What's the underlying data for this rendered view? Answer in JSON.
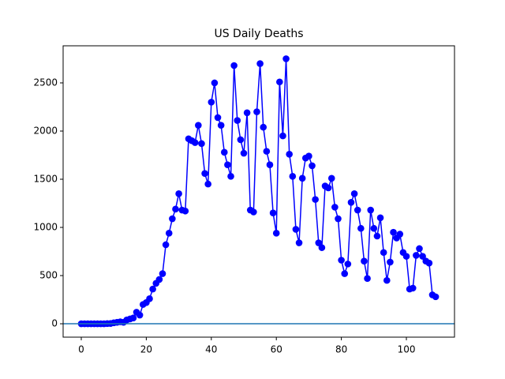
{
  "chart_data": {
    "type": "line",
    "title": "US Daily Deaths",
    "x": [
      0,
      1,
      2,
      3,
      4,
      5,
      6,
      7,
      8,
      9,
      10,
      11,
      12,
      13,
      14,
      15,
      16,
      17,
      18,
      19,
      20,
      21,
      22,
      23,
      24,
      25,
      26,
      27,
      28,
      29,
      30,
      31,
      32,
      33,
      34,
      35,
      36,
      37,
      38,
      39,
      40,
      41,
      42,
      43,
      44,
      45,
      46,
      47,
      48,
      49,
      50,
      51,
      52,
      53,
      54,
      55,
      56,
      57,
      58,
      59,
      60,
      61,
      62,
      63,
      64,
      65,
      66,
      67,
      68,
      69,
      70,
      71,
      72,
      73,
      74,
      75,
      76,
      77,
      78,
      79,
      80,
      81,
      82,
      83,
      84,
      85,
      86,
      87,
      88,
      89,
      90,
      91,
      92,
      93,
      94,
      95,
      96,
      97,
      98,
      99,
      100,
      101,
      102,
      103,
      104,
      105,
      106,
      107,
      108,
      109
    ],
    "series": [
      {
        "color": "#0000ff",
        "values": [
          0,
          0,
          0,
          0,
          0,
          0,
          0,
          0,
          2,
          3,
          10,
          15,
          20,
          15,
          40,
          50,
          60,
          120,
          90,
          200,
          220,
          260,
          360,
          420,
          460,
          520,
          820,
          940,
          1090,
          1190,
          1350,
          1180,
          1170,
          1920,
          1900,
          1880,
          2060,
          1870,
          1560,
          1450,
          2300,
          2500,
          2140,
          2060,
          1780,
          1650,
          1530,
          2680,
          2110,
          1910,
          1770,
          2190,
          1180,
          1160,
          2200,
          2700,
          2040,
          1790,
          1650,
          1150,
          940,
          2510,
          1950,
          2750,
          1760,
          1530,
          980,
          840,
          1510,
          1720,
          1740,
          1640,
          1290,
          840,
          790,
          1430,
          1410,
          1510,
          1210,
          1090,
          660,
          520,
          620,
          1260,
          1350,
          1180,
          990,
          650,
          470,
          1180,
          990,
          910,
          1100,
          740,
          450,
          640,
          950,
          890,
          930,
          740,
          700,
          360,
          370,
          710,
          780,
          700,
          650,
          630,
          300,
          280
        ]
      }
    ],
    "reference_line": {
      "value": 0,
      "color": "#1f77b4"
    },
    "xlim": [
      -5.58,
      114.8
    ],
    "ylim": [
      -139,
      2885
    ],
    "xticks": [
      0,
      20,
      40,
      60,
      80,
      100
    ],
    "yticks": [
      0,
      500,
      1000,
      1500,
      2000,
      2500
    ]
  }
}
